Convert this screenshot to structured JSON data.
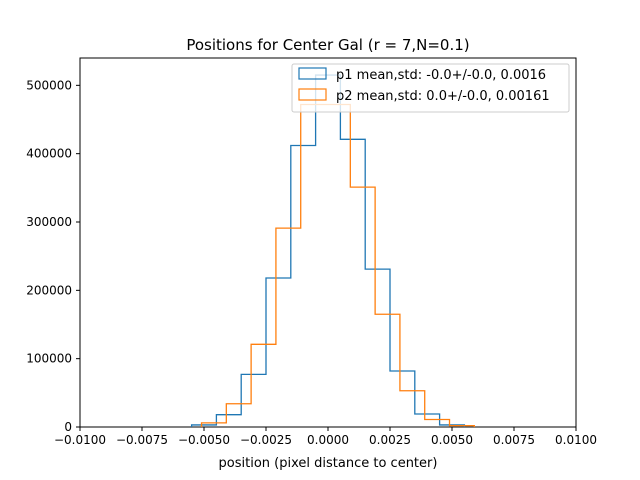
{
  "chart_data": {
    "type": "histogram-step",
    "title": "Positions for Center Gal (r = 7,N=0.1)",
    "xlabel": "position (pixel distance to center)",
    "ylabel": "",
    "xlim": [
      -0.01,
      0.01
    ],
    "ylim": [
      0,
      540000
    ],
    "x_ticks": [
      -0.01,
      -0.0075,
      -0.005,
      -0.0025,
      0.0,
      0.0025,
      0.005,
      0.0075,
      0.01
    ],
    "x_tick_labels": [
      "−0.0100",
      "−0.0075",
      "−0.0050",
      "−0.0025",
      "0.0000",
      "0.0025",
      "0.0050",
      "0.0075",
      "0.0100"
    ],
    "y_ticks": [
      0,
      100000,
      200000,
      300000,
      400000,
      500000
    ],
    "y_tick_labels": [
      "0",
      "100000",
      "200000",
      "300000",
      "400000",
      "500000"
    ],
    "grid": false,
    "legend_position": "top-right",
    "series": [
      {
        "name": "p1 mean,std: -0.0+/-0.0, 0.0016",
        "color": "#1f77b4",
        "bin_edges": [
          -0.0055,
          -0.0045,
          -0.0035,
          -0.0025,
          -0.0015,
          -0.0005,
          0.0005,
          0.0015,
          0.0025,
          0.0035,
          0.0045,
          0.0055
        ],
        "counts": [
          3000,
          18000,
          77000,
          218000,
          412000,
          515000,
          421000,
          231000,
          82000,
          19000,
          3000
        ]
      },
      {
        "name": "p2 mean,std: 0.0+/-0.0, 0.00161",
        "color": "#ff7f0e",
        "bin_edges": [
          -0.0051,
          -0.0041,
          -0.0031,
          -0.0021,
          -0.0011,
          -0.0001,
          0.0009,
          0.0019,
          0.0029,
          0.0039,
          0.0049,
          0.0059
        ],
        "counts": [
          6000,
          34000,
          121000,
          291000,
          472000,
          472000,
          351000,
          165000,
          53000,
          11000,
          2000
        ]
      }
    ]
  }
}
